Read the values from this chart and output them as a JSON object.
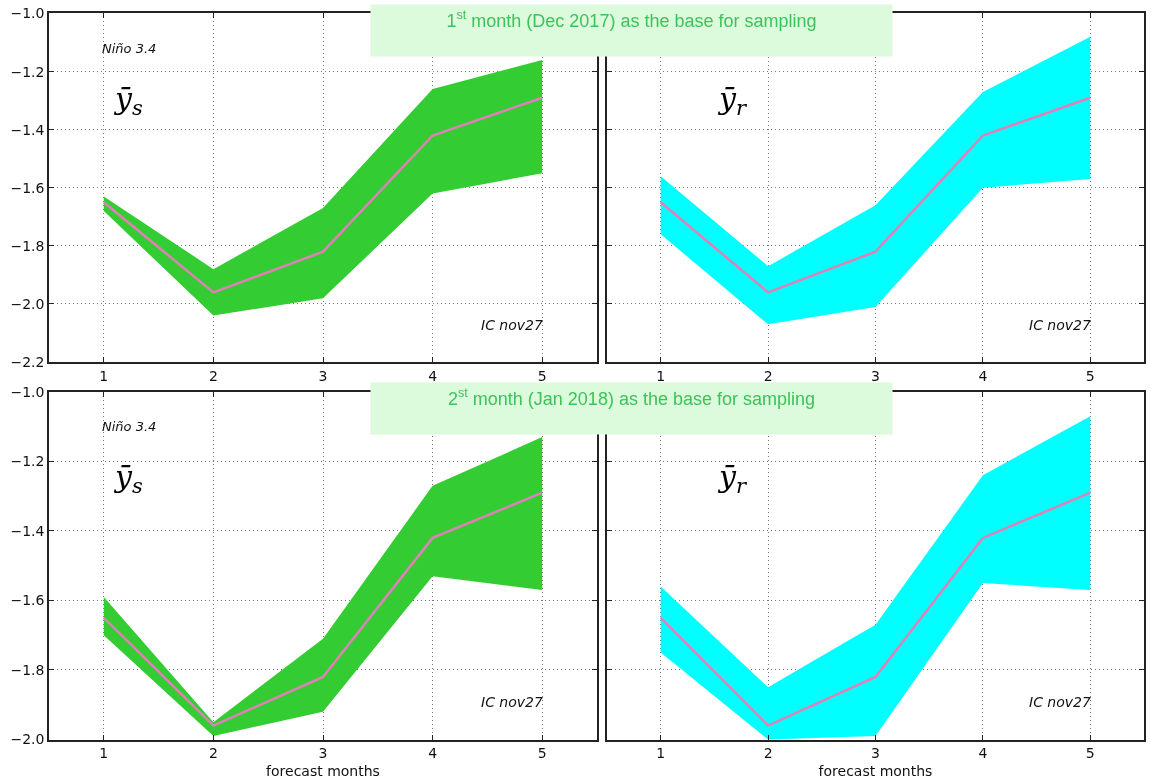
{
  "chart_data": [
    {
      "type": "line",
      "title": "1$^{st}$ month (Dec 2017) as the base for sampling",
      "x": [
        1,
        2,
        3,
        4,
        5
      ],
      "xlim": [
        0.5,
        5.5
      ],
      "xticks": [
        1,
        2,
        3,
        4,
        5
      ],
      "ylim": [
        -2.2,
        -1.0
      ],
      "yticks": [
        {
          "value": -2.2,
          "label": "−2.2"
        },
        {
          "value": -2.0,
          "label": "−2.0"
        },
        {
          "value": -1.8,
          "label": "−1.8"
        },
        {
          "value": -1.6,
          "label": "−1.6"
        },
        {
          "value": -1.4,
          "label": "−1.4"
        },
        {
          "value": -1.2,
          "label": "−1.2"
        },
        {
          "value": -1.0,
          "label": "−1.0"
        }
      ],
      "grid": true,
      "annotations": [
        "Niño 3.4",
        "ȳ$_{s}$",
        "IC nov27"
      ],
      "series": [
        {
          "color": "#33cc33",
          "values": [
            null,
            null,
            null,
            null,
            null
          ],
          "lower": [
            -1.68,
            -2.04,
            -1.98,
            -1.62,
            -1.55
          ],
          "upper": [
            -1.63,
            -1.88,
            -1.67,
            -1.26,
            -1.16
          ]
        },
        {
          "color": "#e080b8",
          "values": [
            -1.65,
            -1.96,
            -1.82,
            -1.42,
            -1.29
          ]
        }
      ]
    },
    {
      "type": "line",
      "x": [
        1,
        2,
        3,
        4,
        5
      ],
      "xlim": [
        0.5,
        5.5
      ],
      "xticks": [
        1,
        2,
        3,
        4,
        5
      ],
      "ylim": [
        -2.2,
        -1.0
      ],
      "yticks": [
        -2.2,
        -2.0,
        -1.8,
        -1.6,
        -1.4,
        -1.2,
        -1.0
      ],
      "grid": true,
      "tick_labels": "x",
      "annotations": [
        "ȳ$_{r}$",
        "IC nov27"
      ],
      "series": [
        {
          "color": "#00ffff",
          "values": [
            null,
            null,
            null,
            null,
            null
          ],
          "lower": [
            -1.76,
            -2.07,
            -2.01,
            -1.6,
            -1.57
          ],
          "upper": [
            -1.56,
            -1.87,
            -1.66,
            -1.27,
            -1.08
          ]
        },
        {
          "color": "#e080b8",
          "values": [
            -1.65,
            -1.96,
            -1.82,
            -1.42,
            -1.29
          ]
        }
      ]
    },
    {
      "type": "line",
      "title": "2$^{st}$ month (Jan 2018) as the base for sampling",
      "xlabel": "forecast months",
      "x": [
        1,
        2,
        3,
        4,
        5
      ],
      "xlim": [
        0.5,
        5.5
      ],
      "xticks": [
        1,
        2,
        3,
        4,
        5
      ],
      "ylim": [
        -2.0,
        -1.0
      ],
      "yticks": [
        {
          "value": -2.0,
          "label": "−2.0"
        },
        {
          "value": -1.8,
          "label": "−1.8"
        },
        {
          "value": -1.6,
          "label": "−1.6"
        },
        {
          "value": -1.4,
          "label": "−1.4"
        },
        {
          "value": -1.2,
          "label": "−1.2"
        },
        {
          "value": -1.0,
          "label": "−1.0"
        }
      ],
      "grid": true,
      "annotations": [
        "Niño 3.4",
        "ȳ$_{s}$",
        "IC nov27"
      ],
      "series": [
        {
          "color": "#33cc33",
          "values": [
            null,
            null,
            null,
            null,
            null
          ],
          "lower": [
            -1.7,
            -1.99,
            -1.92,
            -1.53,
            -1.57
          ],
          "upper": [
            -1.59,
            -1.95,
            -1.71,
            -1.27,
            -1.13
          ]
        },
        {
          "color": "#e080b8",
          "values": [
            -1.65,
            -1.96,
            -1.82,
            -1.42,
            -1.29
          ]
        }
      ]
    },
    {
      "type": "line",
      "xlabel": "forecast months",
      "x": [
        1,
        2,
        3,
        4,
        5
      ],
      "xlim": [
        0.5,
        5.5
      ],
      "xticks": [
        1,
        2,
        3,
        4,
        5
      ],
      "ylim": [
        -2.0,
        -1.0
      ],
      "yticks": [
        -2.0,
        -1.8,
        -1.6,
        -1.4,
        -1.2,
        -1.0
      ],
      "grid": true,
      "tick_labels": "x",
      "annotations": [
        "ȳ$_{r}$",
        "IC nov27"
      ],
      "series": [
        {
          "color": "#00ffff",
          "values": [
            null,
            null,
            null,
            null,
            null
          ],
          "lower": [
            -1.75,
            -2.0,
            -1.99,
            -1.55,
            -1.57
          ],
          "upper": [
            -1.56,
            -1.85,
            -1.67,
            -1.24,
            -1.07
          ]
        },
        {
          "color": "#e080b8",
          "values": [
            -1.65,
            -1.96,
            -1.82,
            -1.42,
            -1.29
          ]
        }
      ]
    }
  ]
}
